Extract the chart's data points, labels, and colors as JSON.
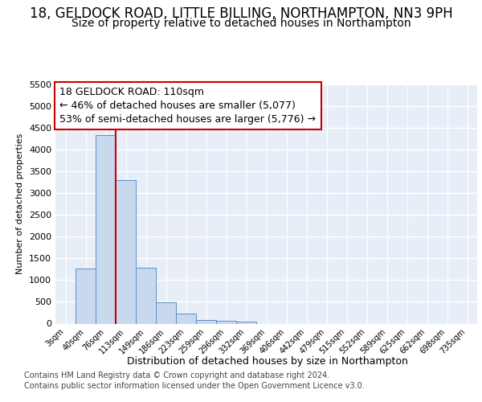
{
  "title": "18, GELDOCK ROAD, LITTLE BILLING, NORTHAMPTON, NN3 9PH",
  "subtitle": "Size of property relative to detached houses in Northampton",
  "xlabel": "Distribution of detached houses by size in Northampton",
  "ylabel": "Number of detached properties",
  "footer_line1": "Contains HM Land Registry data © Crown copyright and database right 2024.",
  "footer_line2": "Contains public sector information licensed under the Open Government Licence v3.0.",
  "annotation_line1": "18 GELDOCK ROAD: 110sqm",
  "annotation_line2": "← 46% of detached houses are smaller (5,077)",
  "annotation_line3": "53% of semi-detached houses are larger (5,776) →",
  "bar_color": "#c9d9ed",
  "bar_edge_color": "#5b8fc8",
  "vline_color": "#cc0000",
  "categories": [
    "3sqm",
    "40sqm",
    "76sqm",
    "113sqm",
    "149sqm",
    "186sqm",
    "223sqm",
    "259sqm",
    "296sqm",
    "332sqm",
    "369sqm",
    "406sqm",
    "442sqm",
    "479sqm",
    "515sqm",
    "552sqm",
    "589sqm",
    "625sqm",
    "662sqm",
    "698sqm",
    "735sqm"
  ],
  "values": [
    0,
    1270,
    4330,
    3300,
    1280,
    490,
    230,
    90,
    60,
    50,
    0,
    0,
    0,
    0,
    0,
    0,
    0,
    0,
    0,
    0,
    0
  ],
  "vline_x": 2.5,
  "ylim": [
    0,
    5500
  ],
  "yticks": [
    0,
    500,
    1000,
    1500,
    2000,
    2500,
    3000,
    3500,
    4000,
    4500,
    5000,
    5500
  ],
  "bg_color": "#ffffff",
  "plot_bg_color": "#e8eef8",
  "grid_color": "#ffffff",
  "title_fontsize": 12,
  "subtitle_fontsize": 10,
  "ann_fontsize": 9,
  "footer_fontsize": 7
}
